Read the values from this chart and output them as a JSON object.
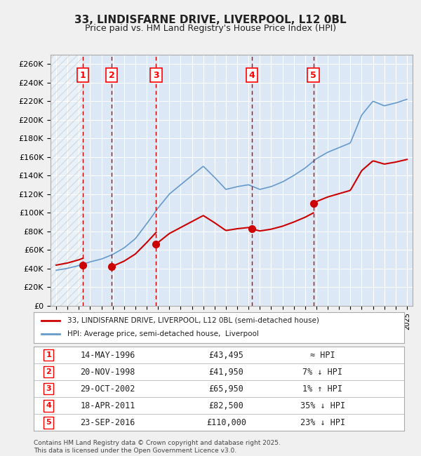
{
  "title": "33, LINDISFARNE DRIVE, LIVERPOOL, L12 0BL",
  "subtitle": "Price paid vs. HM Land Registry's House Price Index (HPI)",
  "ylim": [
    0,
    270000
  ],
  "yticks": [
    0,
    20000,
    40000,
    60000,
    80000,
    100000,
    120000,
    140000,
    160000,
    180000,
    200000,
    220000,
    240000,
    260000
  ],
  "ytick_labels": [
    "£0",
    "£20K",
    "£40K",
    "£60K",
    "£80K",
    "£100K",
    "£120K",
    "£140K",
    "£160K",
    "£180K",
    "£200K",
    "£220K",
    "£240K",
    "£260K"
  ],
  "xlim_start": 1993.5,
  "xlim_end": 2025.5,
  "plot_bg_color": "#dce8f5",
  "grid_color": "#ffffff",
  "transactions": [
    {
      "num": 1,
      "year": 1996.37,
      "price": 43495,
      "date": "14-MAY-1996",
      "amount": "£43,495",
      "note": "≈ HPI"
    },
    {
      "num": 2,
      "year": 1998.89,
      "price": 41950,
      "date": "20-NOV-1998",
      "amount": "£41,950",
      "note": "7% ↓ HPI"
    },
    {
      "num": 3,
      "year": 2002.83,
      "price": 65950,
      "date": "29-OCT-2002",
      "amount": "£65,950",
      "note": "1% ↑ HPI"
    },
    {
      "num": 4,
      "year": 2011.3,
      "price": 82500,
      "date": "18-APR-2011",
      "amount": "£82,500",
      "note": "35% ↓ HPI"
    },
    {
      "num": 5,
      "year": 2016.73,
      "price": 110000,
      "date": "23-SEP-2016",
      "amount": "£110,000",
      "note": "23% ↓ HPI"
    }
  ],
  "red_line_color": "#cc0000",
  "blue_line_color": "#6699cc",
  "marker_color": "#cc0000",
  "dashed_line_color": "#cc0000",
  "legend_entries": [
    "33, LINDISFARNE DRIVE, LIVERPOOL, L12 0BL (semi-detached house)",
    "HPI: Average price, semi-detached house,  Liverpool"
  ],
  "footer": "Contains HM Land Registry data © Crown copyright and database right 2025.\nThis data is licensed under the Open Government Licence v3.0.",
  "hpi_base_years": [
    1994,
    1995,
    1996,
    1997,
    1998,
    1999,
    2000,
    2001,
    2002,
    2003,
    2004,
    2005,
    2006,
    2007,
    2008,
    2009,
    2010,
    2011,
    2012,
    2013,
    2014,
    2015,
    2016,
    2017,
    2018,
    2019,
    2020,
    2021,
    2022,
    2023,
    2024,
    2025
  ],
  "hpi_base_vals": [
    38000,
    40000,
    43000,
    47000,
    50000,
    55000,
    62000,
    72000,
    88000,
    105000,
    120000,
    130000,
    140000,
    150000,
    138000,
    125000,
    128000,
    130000,
    125000,
    128000,
    133000,
    140000,
    148000,
    158000,
    165000,
    170000,
    175000,
    205000,
    220000,
    215000,
    218000,
    222000
  ]
}
